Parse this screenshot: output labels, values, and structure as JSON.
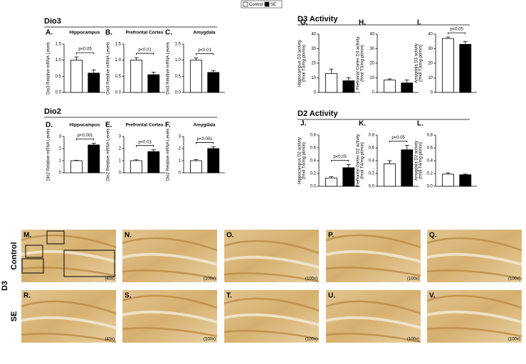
{
  "legend": [
    {
      "name": "Control",
      "color": "#ffffff"
    },
    {
      "name": "SE",
      "color": "#000000"
    }
  ],
  "sections": [
    {
      "title": "Dio3"
    },
    {
      "title": "Dio2"
    },
    {
      "title": "D3 Activity"
    },
    {
      "title": "D2 Activity"
    }
  ],
  "chart_data": [
    {
      "type": "bar",
      "panel": "A.",
      "title": "Hippocampus",
      "ylabel": [
        "Dio3 Relative mRNA Levels"
      ],
      "values": [
        1.0,
        0.6
      ],
      "errors": [
        0.1,
        0.1
      ],
      "annotation": "p<0.05",
      "ylim": [
        0,
        1.5
      ],
      "yticks": [
        {
          "value": 0,
          "label": "0.0"
        },
        {
          "value": 0.5,
          "label": "0.5"
        },
        {
          "value": 1,
          "label": "1.0"
        },
        {
          "value": 1.5,
          "label": "1.5"
        }
      ]
    },
    {
      "type": "bar",
      "panel": "B.",
      "title": "Prefrontal Cortex",
      "ylabel": [
        "Dio3 Relative mRNA Levels"
      ],
      "values": [
        1.0,
        0.55
      ],
      "errors": [
        0.08,
        0.08
      ],
      "annotation": "p<0.01",
      "ylim": [
        0,
        1.5
      ],
      "yticks": [
        {
          "value": 0,
          "label": "0.0"
        },
        {
          "value": 0.5,
          "label": "0.5"
        },
        {
          "value": 1,
          "label": "1.0"
        },
        {
          "value": 1.5,
          "label": "1.5"
        }
      ]
    },
    {
      "type": "bar",
      "panel": "C.",
      "title": "Amygdala",
      "ylabel": [
        "Dio3 Relative mRNA Levels"
      ],
      "values": [
        1.0,
        0.62
      ],
      "errors": [
        0.07,
        0.06
      ],
      "annotation": "p<0.01",
      "ylim": [
        0,
        1.5
      ],
      "yticks": [
        {
          "value": 0,
          "label": "0.0"
        },
        {
          "value": 0.5,
          "label": "0.5"
        },
        {
          "value": 1,
          "label": "1.0"
        },
        {
          "value": 1.5,
          "label": "1.5"
        }
      ]
    },
    {
      "type": "bar",
      "panel": "D.",
      "title": "Hippocampus",
      "ylabel": [
        "Dio2 Relative mRNA Levels"
      ],
      "values": [
        1.0,
        2.3
      ],
      "errors": [
        0.03,
        0.15
      ],
      "annotation": "p<0.001",
      "ylim": [
        0,
        3
      ],
      "yticks": [
        0,
        1,
        2,
        3
      ]
    },
    {
      "type": "bar",
      "panel": "E.",
      "title": "Prefrontal Cortex",
      "ylabel": [
        "Dio2 Relative mRNA Levels"
      ],
      "values": [
        1.0,
        1.75
      ],
      "errors": [
        0.07,
        0.15
      ],
      "annotation": "p<0.01",
      "ylim": [
        0,
        3
      ],
      "yticks": [
        0,
        1,
        2,
        3
      ]
    },
    {
      "type": "bar",
      "panel": "F.",
      "title": "Amygdala",
      "ylabel": [
        "Dio2 Relative mRNA Levels"
      ],
      "values": [
        1.0,
        2.0
      ],
      "errors": [
        0.08,
        0.15
      ],
      "annotation": "p<0.001",
      "ylim": [
        0,
        3
      ],
      "yticks": [
        0,
        1,
        2,
        3
      ]
    },
    {
      "type": "bar",
      "panel": "G.",
      "ylabel": [
        "Hippocampus D3 activity",
        "(fmol T3/mg pt/min)"
      ],
      "values": [
        13,
        8
      ],
      "errors": [
        3,
        2
      ],
      "ylim": [
        0,
        40
      ],
      "yticks": [
        0,
        10,
        20,
        30,
        40
      ]
    },
    {
      "type": "bar",
      "panel": "H.",
      "ylabel": [
        "Prefrontal Cortex D3 activity",
        "(fmol T3/mg pt/min)"
      ],
      "values": [
        8.5,
        6.5
      ],
      "errors": [
        0.8,
        2
      ],
      "ylim": [
        0,
        40
      ],
      "yticks": [
        0,
        10,
        20,
        30,
        40
      ]
    },
    {
      "type": "bar",
      "panel": "I.",
      "ylabel": [
        "Amygdala D3 activity",
        "(fmol T3/mg pt/min)"
      ],
      "values": [
        37,
        33
      ],
      "errors": [
        1,
        2
      ],
      "annotation": "p<0.05",
      "ylim": [
        0,
        40
      ],
      "yticks": [
        0,
        10,
        20,
        30,
        40
      ]
    },
    {
      "type": "bar",
      "panel": "J.",
      "ylabel": [
        "Hippocampus D2 activity",
        "(fmol T4/mg pt/min)"
      ],
      "values": [
        0.13,
        0.29
      ],
      "errors": [
        0.02,
        0.05
      ],
      "annotation": "p<0.05",
      "ylim": [
        0,
        0.8
      ],
      "yticks": [
        {
          "value": 0,
          "label": "0.0"
        },
        0.2,
        0.4,
        0.6,
        0.8
      ]
    },
    {
      "type": "bar",
      "panel": "K.",
      "ylabel": [
        "Prefrontal Cortex D2 activity",
        "(fmol T4/mg pt/min)"
      ],
      "values": [
        0.35,
        0.57
      ],
      "errors": [
        0.05,
        0.07
      ],
      "annotation": "p<0.05",
      "ylim": [
        0,
        0.8
      ],
      "yticks": [
        {
          "value": 0,
          "label": "0.0"
        },
        0.2,
        0.4,
        0.6,
        0.8
      ]
    },
    {
      "type": "bar",
      "panel": "L.",
      "ylabel": [
        "Amygdala D2 activity",
        "(fmol T4/mg pt/min)"
      ],
      "values": [
        0.19,
        0.18
      ],
      "errors": [
        0.02,
        0.01
      ],
      "ylim": [
        0,
        0.8
      ],
      "yticks": [
        {
          "value": 0,
          "label": "0.0"
        },
        0.2,
        0.4,
        0.6,
        0.8
      ]
    }
  ],
  "micrograph_labels": {
    "group": "D3",
    "rows": [
      "Control",
      "SE"
    ]
  },
  "micrographs": [
    {
      "panel": "M.",
      "magnification": "(40x)"
    },
    {
      "panel": "N.",
      "magnification": "(100x)"
    },
    {
      "panel": "O.",
      "magnification": "(100x)"
    },
    {
      "panel": "P.",
      "magnification": "(100x)"
    },
    {
      "panel": "Q.",
      "magnification": "(100x)"
    },
    {
      "panel": "R.",
      "magnification": "(40x)"
    },
    {
      "panel": "S.",
      "magnification": "(100x)"
    },
    {
      "panel": "T.",
      "magnification": "(100x)"
    },
    {
      "panel": "U.",
      "magnification": "(100x)"
    },
    {
      "panel": "V.",
      "magnification": "(100x)"
    }
  ]
}
